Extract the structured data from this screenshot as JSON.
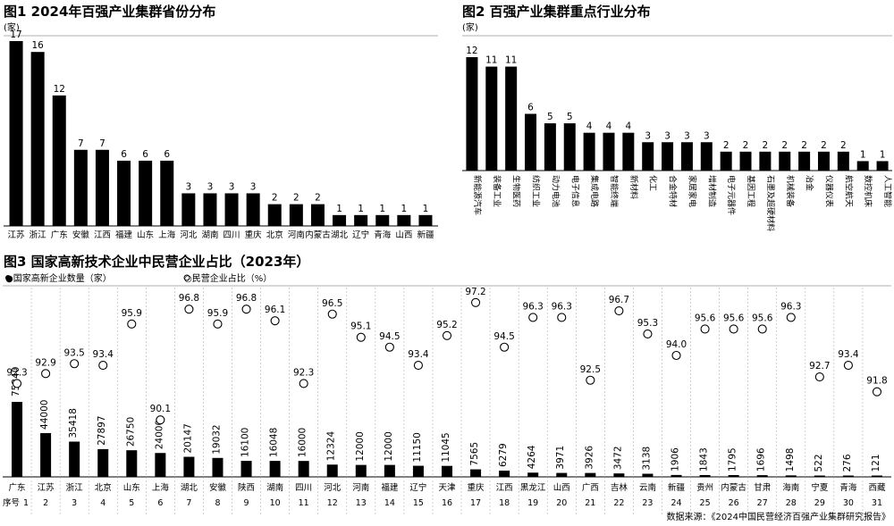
{
  "figures": {
    "fig1": {
      "title": "图1 2024年百强产业集群省份分布",
      "unit": "(家)"
    },
    "fig2": {
      "title": "图2 百强产业集群重点行业分布",
      "unit": "(家)"
    },
    "fig3": {
      "title": "图3 国家高新技术企业中民营企业占比（2023年）",
      "legend_count": "●国家高新企业数量（家）",
      "legend_share": "○民营企业占比（%）",
      "seq_label": "序号"
    }
  },
  "source": "数据来源：《2024中国民营经济百强产业集群研究报告》",
  "chart_data": [
    {
      "type": "bar",
      "title": "图1 2024年百强产业集群省份分布",
      "ylabel": "(家)",
      "categories": [
        "江苏",
        "浙江",
        "广东",
        "安徽",
        "江西",
        "福建",
        "山东",
        "上海",
        "河北",
        "湖南",
        "四川",
        "重庆",
        "北京",
        "河南",
        "内蒙古",
        "湖北",
        "辽宁",
        "青海",
        "山西",
        "新疆"
      ],
      "values": [
        17,
        16,
        12,
        7,
        7,
        6,
        6,
        6,
        3,
        3,
        3,
        3,
        2,
        2,
        2,
        1,
        1,
        1,
        1,
        1
      ],
      "ylim": [
        0,
        17
      ]
    },
    {
      "type": "bar",
      "title": "图2 百强产业集群重点行业分布",
      "ylabel": "(家)",
      "categories": [
        "新能源汽车",
        "装备工业",
        "生物医药",
        "纺织工业",
        "动力电池",
        "电子信息",
        "集成电路",
        "智能终端",
        "新材料",
        "化工",
        "合金特材",
        "家居家电",
        "增材制造",
        "电子元器件",
        "基因工程",
        "石墨及超硬材料",
        "机械装备",
        "冶金",
        "仪器仪表",
        "航空航天",
        "数控机床",
        "人工智能"
      ],
      "values": [
        12,
        11,
        11,
        6,
        5,
        5,
        4,
        4,
        4,
        3,
        3,
        3,
        3,
        2,
        2,
        2,
        2,
        2,
        2,
        2,
        1,
        1
      ],
      "ylim": [
        0,
        12
      ]
    },
    {
      "type": "bar",
      "title": "图3 国家高新技术企业中民营企业占比（2023年）",
      "categories": [
        "广东",
        "江苏",
        "浙江",
        "北京",
        "山东",
        "上海",
        "湖北",
        "安徽",
        "陕西",
        "湖南",
        "四川",
        "河北",
        "河南",
        "福建",
        "辽宁",
        "天津",
        "重庆",
        "江西",
        "黑龙江",
        "山西",
        "广西",
        "吉林",
        "云南",
        "新疆",
        "贵州",
        "内蒙古",
        "甘肃",
        "海南",
        "宁夏",
        "青海",
        "西藏"
      ],
      "seq": [
        "1",
        "2",
        "3",
        "4",
        "5",
        "6",
        "7",
        "8",
        "9",
        "10",
        "11",
        "12",
        "13",
        "14",
        "15",
        "16",
        "17",
        "18",
        "19",
        "20",
        "21",
        "22",
        "23",
        "24",
        "25",
        "26",
        "27",
        "28",
        "29",
        "30",
        "31"
      ],
      "series": [
        {
          "name": "国家高新企业数量（家）",
          "values": [
            75340,
            44000,
            35418,
            27897,
            26750,
            24000,
            20147,
            19032,
            16100,
            16048,
            16000,
            12324,
            12000,
            12000,
            11150,
            11045,
            7565,
            6279,
            4264,
            3971,
            3926,
            3472,
            3138,
            1906,
            1843,
            1795,
            1696,
            1498,
            522,
            276,
            121
          ]
        },
        {
          "name": "民营企业占比（%）",
          "values": [
            92.3,
            92.9,
            93.5,
            93.4,
            95.9,
            90.1,
            96.8,
            95.9,
            96.8,
            96.1,
            92.3,
            96.5,
            95.1,
            94.5,
            93.4,
            95.2,
            97.2,
            94.5,
            96.3,
            96.3,
            92.5,
            96.7,
            95.3,
            94.0,
            95.6,
            95.6,
            95.6,
            96.3,
            92.7,
            93.4,
            91.8
          ]
        }
      ]
    }
  ]
}
